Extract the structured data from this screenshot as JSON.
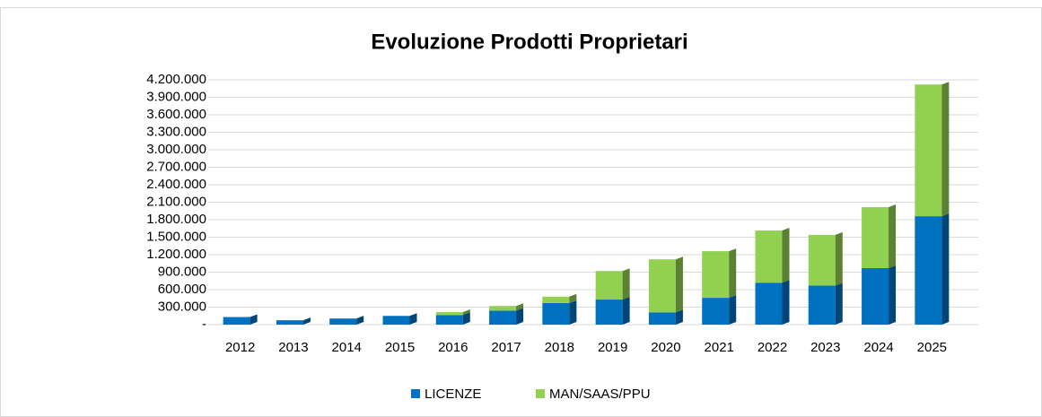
{
  "chart_data": {
    "type": "stacked_bar",
    "title": "Evoluzione Prodotti Proprietari",
    "categories": [
      "2012",
      "2013",
      "2014",
      "2015",
      "2016",
      "2017",
      "2018",
      "2019",
      "2020",
      "2021",
      "2022",
      "2023",
      "2024",
      "2025"
    ],
    "series": [
      {
        "name": "LICENZE",
        "color": "#0070c0",
        "values": [
          130000,
          75000,
          105000,
          150000,
          165000,
          240000,
          370000,
          430000,
          210000,
          460000,
          720000,
          670000,
          970000,
          1860000
        ]
      },
      {
        "name": "MAN/SAAS/PPU",
        "color": "#92d050",
        "values": [
          0,
          0,
          0,
          0,
          50000,
          80000,
          110000,
          490000,
          910000,
          800000,
          895000,
          870000,
          1045000,
          2260000
        ]
      }
    ],
    "ylim": [
      0,
      4200000
    ],
    "yticks": [
      {
        "value": 0,
        "label": "-"
      },
      {
        "value": 300000,
        "label": "300.000"
      },
      {
        "value": 600000,
        "label": "600.000"
      },
      {
        "value": 900000,
        "label": "900.000"
      },
      {
        "value": 1200000,
        "label": "1.200.000"
      },
      {
        "value": 1500000,
        "label": "1.500.000"
      },
      {
        "value": 1800000,
        "label": "1.800.000"
      },
      {
        "value": 2100000,
        "label": "2.100.000"
      },
      {
        "value": 2400000,
        "label": "2.400.000"
      },
      {
        "value": 2700000,
        "label": "2.700.000"
      },
      {
        "value": 3000000,
        "label": "3.000.000"
      },
      {
        "value": 3300000,
        "label": "3.300.000"
      },
      {
        "value": 3600000,
        "label": "3.600.000"
      },
      {
        "value": 3900000,
        "label": "3.900.000"
      },
      {
        "value": 4200000,
        "label": "4.200.000"
      }
    ],
    "grid": true,
    "legend": "bottom"
  }
}
